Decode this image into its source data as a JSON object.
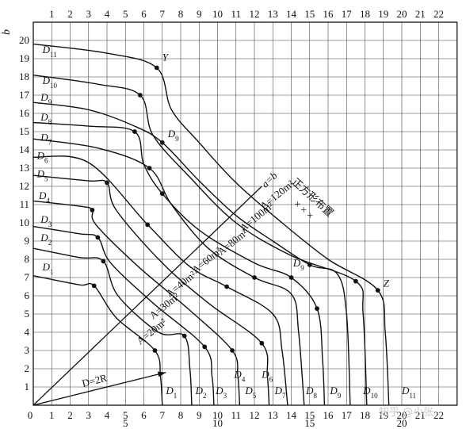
{
  "chart_data": {
    "type": "line",
    "xlabel": "",
    "ylabel": "b",
    "xlim": [
      0,
      23
    ],
    "ylim": [
      0,
      21
    ],
    "grid": true,
    "bottom_ticks": [
      "0",
      "1",
      "2",
      "3",
      "4",
      "5",
      "6",
      "7",
      "8",
      "9",
      "10",
      "11",
      "12",
      "13",
      "14",
      "15",
      "16",
      "17",
      "18",
      "19",
      "20",
      "21",
      "22"
    ],
    "top_ticks": [
      "1",
      "2",
      "3",
      "4",
      "5",
      "6",
      "7",
      "8",
      "9",
      "10",
      "11",
      "12",
      "13",
      "14",
      "15",
      "16",
      "17",
      "18",
      "19",
      "20",
      "21",
      "22"
    ],
    "left_ticks": [
      "1",
      "2",
      "3",
      "4",
      "5",
      "6",
      "7",
      "8",
      "9",
      "10",
      "11",
      "12",
      "13",
      "14",
      "15",
      "16",
      "17",
      "18",
      "19",
      "20"
    ],
    "extra_bottom_ticks": [
      "5",
      "10",
      "15",
      "20"
    ],
    "series": [
      {
        "name": "D1",
        "label": "D",
        "sub": "1",
        "points": [
          [
            0,
            7.1
          ],
          [
            2.5,
            6.6
          ],
          [
            3.3,
            6.55
          ],
          [
            4.5,
            4.8
          ],
          [
            6.6,
            3.0
          ],
          [
            6.9,
            1.6
          ],
          [
            7.0,
            0
          ]
        ],
        "dots": [
          [
            3.3,
            6.55
          ],
          [
            6.6,
            3.0
          ]
        ]
      },
      {
        "name": "D2",
        "label": "D",
        "sub": "2",
        "points": [
          [
            0,
            8.6
          ],
          [
            2.5,
            8.1
          ],
          [
            3.8,
            7.9
          ],
          [
            4.6,
            6.0
          ],
          [
            6.8,
            4.0
          ],
          [
            8.2,
            3.8
          ],
          [
            8.5,
            2.0
          ],
          [
            8.6,
            0
          ]
        ],
        "dots": [
          [
            3.8,
            7.9
          ],
          [
            8.2,
            3.8
          ]
        ]
      },
      {
        "name": "D3",
        "label": "D",
        "sub": "3",
        "points": [
          [
            0,
            9.8
          ],
          [
            2.5,
            9.4
          ],
          [
            3.5,
            9.2
          ],
          [
            4.2,
            7.8
          ],
          [
            6.5,
            5.6
          ],
          [
            9.3,
            3.2
          ],
          [
            9.7,
            1.6
          ],
          [
            9.8,
            0
          ]
        ],
        "dots": [
          [
            3.5,
            9.2
          ],
          [
            9.3,
            3.2
          ]
        ]
      },
      {
        "name": "D4",
        "label": "D",
        "sub": "4",
        "points": [
          [
            0,
            11.2
          ],
          [
            2.6,
            10.9
          ],
          [
            3.2,
            10.7
          ],
          [
            3.4,
            9.9
          ],
          [
            5.7,
            7.6
          ],
          [
            8.5,
            5.2
          ],
          [
            10.8,
            3.0
          ],
          [
            11.1,
            1.6
          ],
          [
            11.2,
            0
          ]
        ],
        "dots": [
          [
            3.2,
            10.7
          ],
          [
            10.8,
            3.0
          ]
        ]
      },
      {
        "name": "D5",
        "label": "D",
        "sub": "5",
        "points": [
          [
            0,
            12.6
          ],
          [
            3.0,
            12.3
          ],
          [
            4.0,
            12.2
          ],
          [
            4.5,
            10.7
          ],
          [
            7.0,
            7.8
          ],
          [
            9.5,
            5.6
          ],
          [
            12.4,
            3.4
          ],
          [
            12.7,
            1.6
          ],
          [
            12.8,
            0
          ]
        ],
        "dots": [
          [
            4.0,
            12.2
          ],
          [
            12.4,
            3.4
          ]
        ]
      },
      {
        "name": "D6",
        "label": "D",
        "sub": "6",
        "points": [
          [
            0,
            13.6
          ],
          [
            3.0,
            13.3
          ],
          [
            6.2,
            9.9
          ],
          [
            8.5,
            7.6
          ],
          [
            10.5,
            6.5
          ],
          [
            13.0,
            5.0
          ],
          [
            13.5,
            3.0
          ],
          [
            13.8,
            0
          ]
        ],
        "dots": [
          [
            6.2,
            9.9
          ],
          [
            10.5,
            6.5
          ]
        ]
      },
      {
        "name": "D7",
        "label": "D",
        "sub": "7",
        "points": [
          [
            0,
            14.6
          ],
          [
            3.5,
            14.1
          ],
          [
            6.3,
            13.0
          ],
          [
            7.5,
            11.0
          ],
          [
            9.5,
            8.6
          ],
          [
            12.0,
            7.0
          ],
          [
            14.0,
            6.1
          ],
          [
            14.4,
            4.0
          ],
          [
            14.7,
            0
          ]
        ],
        "dots": [
          [
            6.3,
            13.0
          ],
          [
            12.0,
            7.0
          ]
        ]
      },
      {
        "name": "D8",
        "label": "D",
        "sub": "8",
        "points": [
          [
            0,
            15.5
          ],
          [
            3.0,
            15.3
          ],
          [
            5.5,
            15.0
          ],
          [
            6.0,
            13.2
          ],
          [
            7.0,
            11.6
          ],
          [
            9.0,
            9.6
          ],
          [
            12.0,
            7.8
          ],
          [
            14.0,
            7.0
          ],
          [
            15.4,
            5.3
          ],
          [
            15.7,
            2.5
          ],
          [
            15.8,
            0
          ]
        ],
        "dots": [
          [
            5.5,
            15.0
          ],
          [
            7.0,
            11.6
          ],
          [
            14.0,
            7.0
          ],
          [
            15.4,
            5.3
          ]
        ]
      },
      {
        "name": "D9",
        "label": "D",
        "sub": "9",
        "points": [
          [
            0,
            16.6
          ],
          [
            3.0,
            16.2
          ],
          [
            5.5,
            15.3
          ],
          [
            7.0,
            14.4
          ],
          [
            9.0,
            12.3
          ],
          [
            11.0,
            10.4
          ],
          [
            13.0,
            9.0
          ],
          [
            15.0,
            7.7
          ],
          [
            16.5,
            7.2
          ],
          [
            17.0,
            5.0
          ],
          [
            17.2,
            0
          ]
        ],
        "dots": [
          [
            7.0,
            14.4
          ],
          [
            15.0,
            7.7
          ]
        ]
      },
      {
        "name": "D10",
        "label": "D",
        "sub": "10",
        "points": [
          [
            0,
            18.1
          ],
          [
            3.5,
            17.6
          ],
          [
            5.8,
            17.0
          ],
          [
            6.5,
            14.8
          ],
          [
            8.5,
            12.5
          ],
          [
            11.0,
            10.0
          ],
          [
            14.0,
            8.2
          ],
          [
            17.5,
            6.8
          ],
          [
            17.9,
            5.0
          ],
          [
            18.1,
            0
          ]
        ],
        "dots": [
          [
            5.8,
            17.0
          ],
          [
            17.5,
            6.8
          ]
        ]
      },
      {
        "name": "D11",
        "label": "D",
        "sub": "11",
        "points": [
          [
            0,
            19.8
          ],
          [
            4.0,
            19.3
          ],
          [
            6.7,
            18.5
          ],
          [
            7.5,
            16.2
          ],
          [
            9.0,
            14.4
          ],
          [
            11.0,
            12.2
          ],
          [
            13.5,
            10.0
          ],
          [
            16.0,
            8.0
          ],
          [
            18.7,
            6.3
          ],
          [
            19.1,
            4.0
          ],
          [
            19.3,
            0
          ]
        ],
        "dots": [
          [
            6.7,
            18.5
          ],
          [
            18.7,
            6.3
          ]
        ]
      }
    ],
    "curve_labels": [
      {
        "text": "D",
        "sub": "1",
        "pos": [
          0.5,
          7.4
        ]
      },
      {
        "text": "D",
        "sub": "2",
        "pos": [
          0.4,
          9.0
        ]
      },
      {
        "text": "D",
        "sub": "3",
        "pos": [
          0.4,
          10.0
        ]
      },
      {
        "text": "D",
        "sub": "4",
        "pos": [
          0.3,
          11.3
        ]
      },
      {
        "text": "D",
        "sub": "5",
        "pos": [
          0.2,
          12.5
        ]
      },
      {
        "text": "D",
        "sub": "6",
        "pos": [
          0.2,
          13.5
        ]
      },
      {
        "text": "D",
        "sub": "7",
        "pos": [
          0.4,
          14.5
        ]
      },
      {
        "text": "D",
        "sub": "8",
        "pos": [
          0.4,
          15.6
        ]
      },
      {
        "text": "D",
        "sub": "9",
        "pos": [
          0.4,
          16.7
        ]
      },
      {
        "text": "D",
        "sub": "10",
        "pos": [
          0.5,
          17.6
        ]
      },
      {
        "text": "D",
        "sub": "11",
        "pos": [
          0.5,
          19.3
        ]
      },
      {
        "text": "D",
        "sub": "1",
        "pos": [
          7.2,
          0.6
        ]
      },
      {
        "text": "D",
        "sub": "2",
        "pos": [
          8.8,
          0.6
        ]
      },
      {
        "text": "D",
        "sub": "3",
        "pos": [
          9.9,
          0.6
        ]
      },
      {
        "text": "D",
        "sub": "4",
        "pos": [
          10.9,
          1.5
        ]
      },
      {
        "text": "D",
        "sub": "5",
        "pos": [
          11.5,
          0.6
        ]
      },
      {
        "text": "D",
        "sub": "6",
        "pos": [
          12.4,
          1.5
        ]
      },
      {
        "text": "D",
        "sub": "7",
        "pos": [
          13.1,
          0.6
        ]
      },
      {
        "text": "D",
        "sub": "8",
        "pos": [
          14.8,
          0.6
        ]
      },
      {
        "text": "D",
        "sub": "9",
        "pos": [
          16.1,
          0.6
        ]
      },
      {
        "text": "D",
        "sub": "10",
        "pos": [
          17.9,
          0.6
        ]
      },
      {
        "text": "D",
        "sub": "11",
        "pos": [
          20.0,
          0.6
        ]
      },
      {
        "text": "D",
        "sub": "9",
        "pos": [
          7.3,
          14.7
        ]
      },
      {
        "text": "D",
        "sub": "9",
        "pos": [
          14.1,
          7.6
        ]
      }
    ],
    "point_labels": [
      {
        "text": "Y",
        "pos": [
          7.0,
          18.9
        ]
      },
      {
        "text": "Z",
        "pos": [
          19.0,
          6.5
        ]
      }
    ],
    "area_labels": [
      {
        "text": "A=20m²",
        "pos": [
          5.8,
          3.3
        ],
        "angle": -39
      },
      {
        "text": "A=30m²",
        "pos": [
          6.5,
          4.7
        ],
        "angle": -39
      },
      {
        "text": "A=40m²",
        "pos": [
          7.4,
          5.9
        ],
        "angle": -39
      },
      {
        "text": "A=60m²",
        "pos": [
          8.8,
          7.2
        ],
        "angle": -39
      },
      {
        "text": "A=80m²",
        "pos": [
          10.2,
          8.2
        ],
        "angle": -39
      },
      {
        "text": "A=100m²",
        "pos": [
          11.4,
          9.5
        ],
        "angle": -39
      },
      {
        "text": "A=120m²",
        "pos": [
          12.5,
          10.7
        ],
        "angle": -39
      }
    ],
    "diagonal": {
      "label": "a=b",
      "from": [
        0,
        0
      ],
      "to": [
        12.4,
        12.0
      ],
      "label_pos": [
        12.6,
        11.9
      ]
    },
    "square_layout": {
      "text": "正方形布置",
      "pos": [
        14.0,
        12.2
      ],
      "angle": 42
    },
    "crosses": {
      "text": "× × ×",
      "pos": [
        14.1,
        11.0
      ],
      "angle": 42
    },
    "arrow": {
      "label": "D=2R",
      "from": [
        0,
        0
      ],
      "to": [
        7.2,
        1.8
      ],
      "label_pos": [
        2.7,
        1.0
      ]
    },
    "watermark": "知乎 @小张"
  }
}
